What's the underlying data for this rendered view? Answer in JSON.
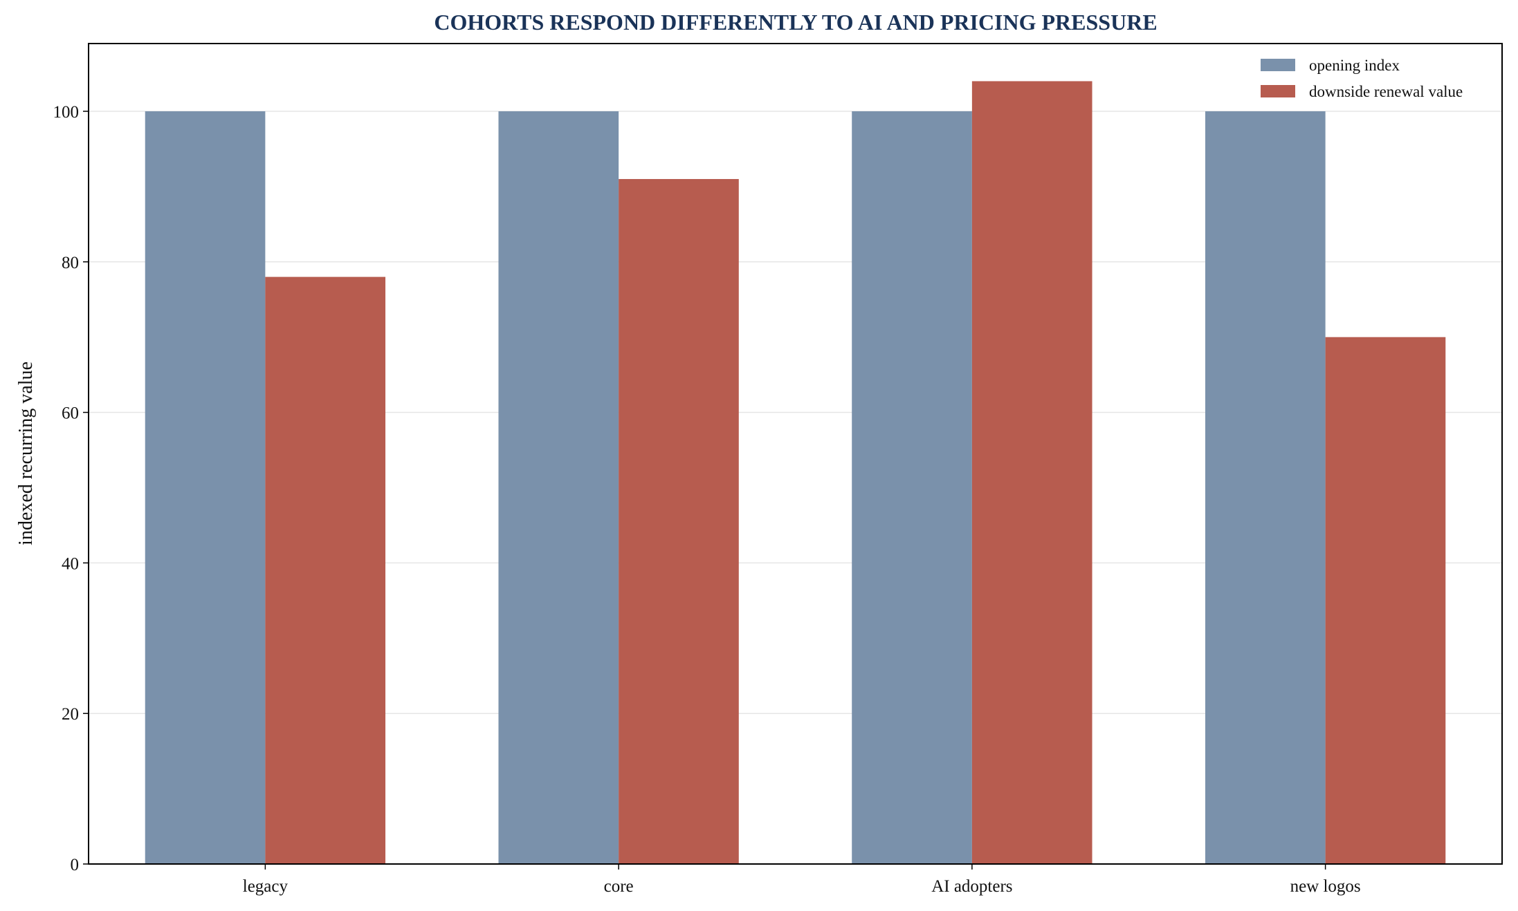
{
  "chart_data": {
    "type": "bar",
    "title": "COHORTS RESPOND DIFFERENTLY TO AI AND PRICING PRESSURE",
    "xlabel": "",
    "ylabel": "indexed recurring value",
    "categories": [
      "legacy",
      "core",
      "AI adopters",
      "new logos"
    ],
    "series": [
      {
        "name": "opening index",
        "color": "#7a91ab",
        "values": [
          100,
          100,
          100,
          100
        ]
      },
      {
        "name": "downside renewal value",
        "color": "#b75c4f",
        "values": [
          78,
          91,
          104,
          70
        ]
      }
    ],
    "ylim": [
      0,
      109
    ],
    "yticks": [
      0,
      20,
      40,
      60,
      80,
      100
    ],
    "grid": "horizontal",
    "legend_position": "top-right"
  }
}
